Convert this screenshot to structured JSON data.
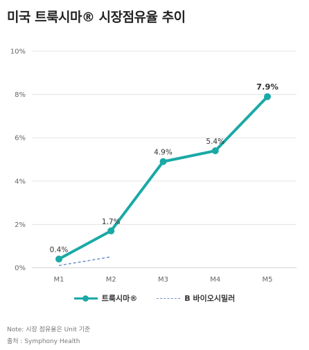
{
  "title": "미국 트룩시마® 시장점유율 추이",
  "note": "Note: 시장 점유율은 Unit 기준",
  "source": "출처 : Symphony Health",
  "colors": {
    "series1": "#1aa9a6",
    "series2": "#6f8fc8",
    "grid": "#e3e3e3"
  },
  "chart_data": {
    "type": "line",
    "categories": [
      "M1",
      "M2",
      "M3",
      "M4",
      "M5"
    ],
    "series": [
      {
        "name": "트룩시마®",
        "values": [
          0.4,
          1.7,
          4.9,
          5.4,
          7.9
        ],
        "labels": [
          "0.4%",
          "1.7%",
          "4.9%",
          "5.4%",
          "7.9%"
        ]
      },
      {
        "name": "B 바이오시밀러",
        "values": [
          0.1,
          0.5,
          null,
          null,
          null
        ]
      }
    ],
    "ylim": [
      0,
      10
    ],
    "yticks": [
      "0%",
      "2%",
      "4%",
      "6%",
      "8%",
      "10%"
    ],
    "grid": true,
    "legend": "bottom"
  }
}
